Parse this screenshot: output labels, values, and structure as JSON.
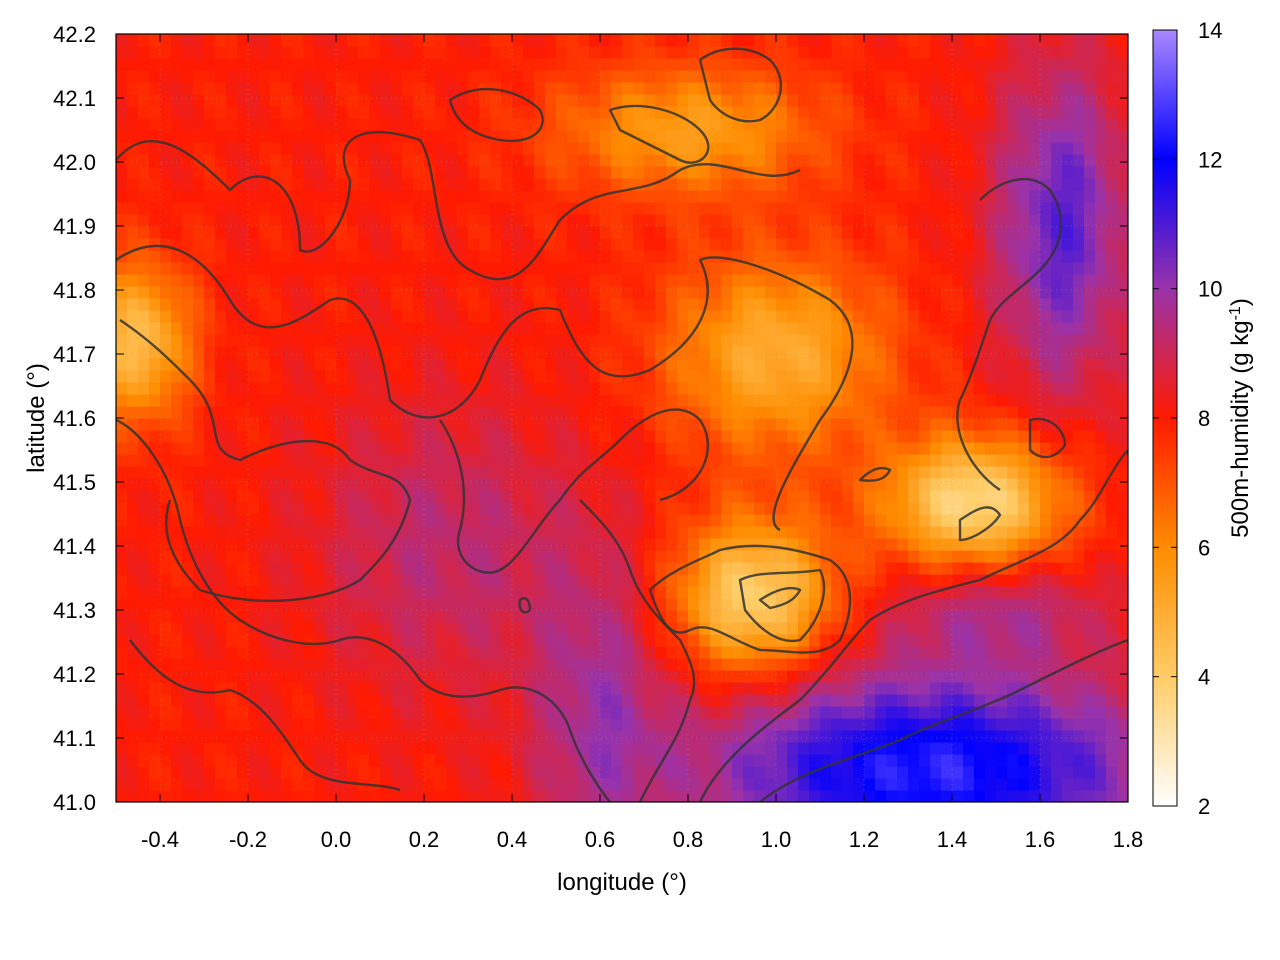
{
  "chart_data": {
    "type": "heatmap",
    "title": "",
    "xlabel": "longitude (°)",
    "ylabel": "latitude (°)",
    "colorbar_label": "500m-humidity (g kg-1)",
    "colorbar_label_parts": {
      "main": "500m-humidity (g kg",
      "sup": "-1",
      "close": ")"
    },
    "xlim": [
      -0.5,
      1.8
    ],
    "ylim": [
      41.0,
      42.2
    ],
    "clim": [
      2,
      14
    ],
    "xticks": [
      -0.4,
      -0.2,
      0.0,
      0.2,
      0.4,
      0.6,
      0.8,
      1.0,
      1.2,
      1.4,
      1.6,
      1.8
    ],
    "xtick_labels": [
      "-0.4",
      "-0.2",
      "0.0",
      "0.2",
      "0.4",
      "0.6",
      "0.8",
      "1.0",
      "1.2",
      "1.4",
      "1.6",
      "1.8"
    ],
    "yticks": [
      41.0,
      41.1,
      41.2,
      41.3,
      41.4,
      41.5,
      41.6,
      41.7,
      41.8,
      41.9,
      42.0,
      42.1,
      42.2
    ],
    "ytick_labels": [
      "41.0",
      "41.1",
      "41.2",
      "41.3",
      "41.4",
      "41.5",
      "41.6",
      "41.7",
      "41.8",
      "41.9",
      "42.0",
      "42.1",
      "42.2"
    ],
    "colorbar_ticks": [
      2,
      4,
      6,
      8,
      10,
      12,
      14
    ],
    "colorbar_tick_labels": [
      "2",
      "4",
      "6",
      "8",
      "10",
      "12",
      "14"
    ],
    "colormap": [
      {
        "value": 2,
        "color": "#ffffff"
      },
      {
        "value": 4,
        "color": "#ffcc66"
      },
      {
        "value": 6,
        "color": "#ff8c00"
      },
      {
        "value": 8,
        "color": "#ff1a00"
      },
      {
        "value": 10,
        "color": "#9933aa"
      },
      {
        "value": 12,
        "color": "#0000ff"
      },
      {
        "value": 14,
        "color": "#aa88ff"
      }
    ],
    "grid": true,
    "regions": [
      {
        "lon": -0.45,
        "lat": 41.72,
        "humidity": 4.5,
        "spread_lon": 0.12,
        "spread_lat": 0.12
      },
      {
        "lon": 0.25,
        "lat": 41.4,
        "humidity": 9.3,
        "spread_lon": 0.3,
        "spread_lat": 0.22
      },
      {
        "lon": 0.6,
        "lat": 41.15,
        "humidity": 9.6,
        "spread_lon": 0.15,
        "spread_lat": 0.25
      },
      {
        "lon": 0.95,
        "lat": 41.32,
        "humidity": 3.8,
        "spread_lon": 0.18,
        "spread_lat": 0.12
      },
      {
        "lon": 1.0,
        "lat": 41.7,
        "humidity": 5.0,
        "spread_lon": 0.25,
        "spread_lat": 0.15
      },
      {
        "lon": 1.45,
        "lat": 41.47,
        "humidity": 3.5,
        "spread_lon": 0.2,
        "spread_lat": 0.1
      },
      {
        "lon": 1.35,
        "lat": 41.05,
        "humidity": 12.5,
        "spread_lon": 0.5,
        "spread_lat": 0.15
      },
      {
        "lon": 1.65,
        "lat": 41.9,
        "humidity": 10.8,
        "spread_lon": 0.15,
        "spread_lat": 0.25
      },
      {
        "lon": 0.8,
        "lat": 42.05,
        "humidity": 5.5,
        "spread_lon": 0.3,
        "spread_lat": 0.1
      },
      {
        "lon": 1.5,
        "lat": 41.3,
        "humidity": 9.5,
        "spread_lon": 0.25,
        "spread_lat": 0.08
      }
    ]
  }
}
